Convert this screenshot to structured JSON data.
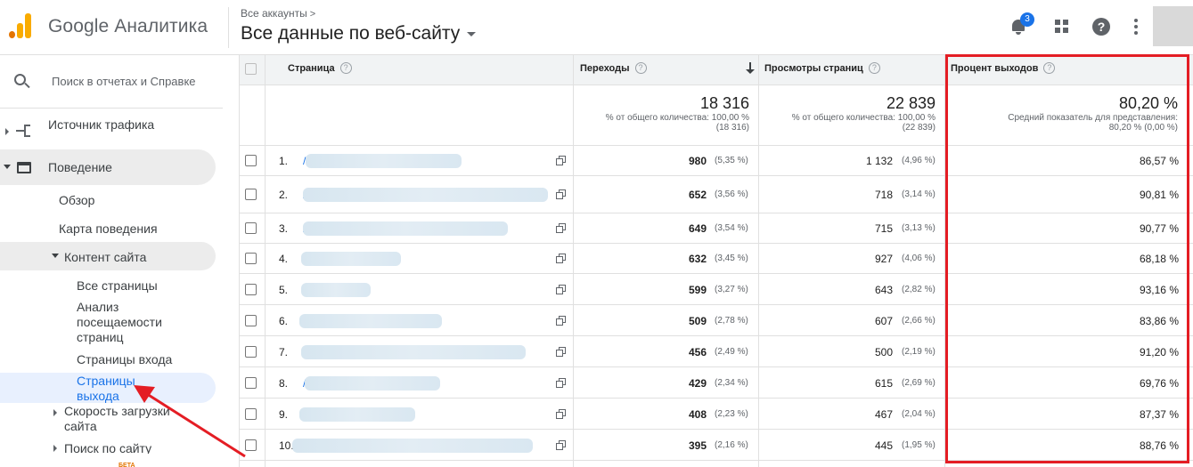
{
  "header": {
    "logo_text": "Google Аналитика",
    "account_small": "Все аккаунты",
    "account_chevron": ">",
    "account_big": "Все данные по веб-сайту",
    "notification_count": "3",
    "help_glyph": "?"
  },
  "sidebar": {
    "search_placeholder": "Поиск в отчетах и Справке",
    "items": {
      "traffic_source": "Источник трафика",
      "behavior": "Поведение",
      "overview": "Обзор",
      "behavior_map": "Карта поведения",
      "site_content": "Контент сайта",
      "all_pages": "Все страницы",
      "page_analytics": "Анализ посещаемости страниц",
      "landing_pages": "Страницы входа",
      "exit_pages": "Страницы выхода",
      "site_speed": "Скорость загрузки сайта",
      "site_search": "Поиск по сайту",
      "beta": "БЕТА"
    }
  },
  "table": {
    "columns": {
      "page": "Страница",
      "transitions": "Переходы",
      "pageviews": "Просмотры страниц",
      "exit_rate": "Процент выходов"
    },
    "help_glyph": "?",
    "totals": {
      "transitions_value": "18 316",
      "transitions_note_1": "% от общего количества: 100,00 %",
      "transitions_note_2": "(18 316)",
      "pageviews_value": "22 839",
      "pageviews_note_1": "% от общего количества: 100,00 %",
      "pageviews_note_2": "(22 839)",
      "exit_value": "80,20 %",
      "exit_note_1": "Средний показатель для представления:",
      "exit_note_2": "80,20 % (0,00 %)"
    },
    "rows": [
      {
        "index": "1.",
        "slash": "/",
        "transitions": "980",
        "transitions_pct": "(5,35 %)",
        "pageviews": "1 132",
        "pageviews_pct": "(4,96 %)",
        "exit": "86,57 %"
      },
      {
        "index": "2.",
        "slash": "/",
        "transitions": "652",
        "transitions_pct": "(3,56 %)",
        "pageviews": "718",
        "pageviews_pct": "(3,14 %)",
        "exit": "90,81 %"
      },
      {
        "index": "3.",
        "slash": "/",
        "transitions": "649",
        "transitions_pct": "(3,54 %)",
        "pageviews": "715",
        "pageviews_pct": "(3,13 %)",
        "exit": "90,77 %"
      },
      {
        "index": "4.",
        "slash": "",
        "transitions": "632",
        "transitions_pct": "(3,45 %)",
        "pageviews": "927",
        "pageviews_pct": "(4,06 %)",
        "exit": "68,18 %"
      },
      {
        "index": "5.",
        "slash": "",
        "transitions": "599",
        "transitions_pct": "(3,27 %)",
        "pageviews": "643",
        "pageviews_pct": "(2,82 %)",
        "exit": "93,16 %"
      },
      {
        "index": "6.",
        "slash": "",
        "transitions": "509",
        "transitions_pct": "(2,78 %)",
        "pageviews": "607",
        "pageviews_pct": "(2,66 %)",
        "exit": "83,86 %"
      },
      {
        "index": "7.",
        "slash": "",
        "transitions": "456",
        "transitions_pct": "(2,49 %)",
        "pageviews": "500",
        "pageviews_pct": "(2,19 %)",
        "exit": "91,20 %"
      },
      {
        "index": "8.",
        "slash": "/",
        "transitions": "429",
        "transitions_pct": "(2,34 %)",
        "pageviews": "615",
        "pageviews_pct": "(2,69 %)",
        "exit": "69,76 %"
      },
      {
        "index": "9.",
        "slash": "",
        "transitions": "408",
        "transitions_pct": "(2,23 %)",
        "pageviews": "467",
        "pageviews_pct": "(2,04 %)",
        "exit": "87,37 %"
      },
      {
        "index": "10.",
        "slash": "",
        "transitions": "395",
        "transitions_pct": "(2,16 %)",
        "pageviews": "445",
        "pageviews_pct": "(1,95 %)",
        "exit": "88,76 %"
      }
    ]
  },
  "colors": {
    "accent": "#1a73e8",
    "highlight_box": "#e41d24",
    "annotation_arrow": "#e41d24",
    "logo_orange": "#f9ab00"
  },
  "icons": [
    "search-icon",
    "notification-bell-icon",
    "apps-grid-icon",
    "help-icon",
    "more-vert-icon",
    "sort-down-arrow-icon",
    "open-in-new-icon",
    "help-circle-icon"
  ]
}
